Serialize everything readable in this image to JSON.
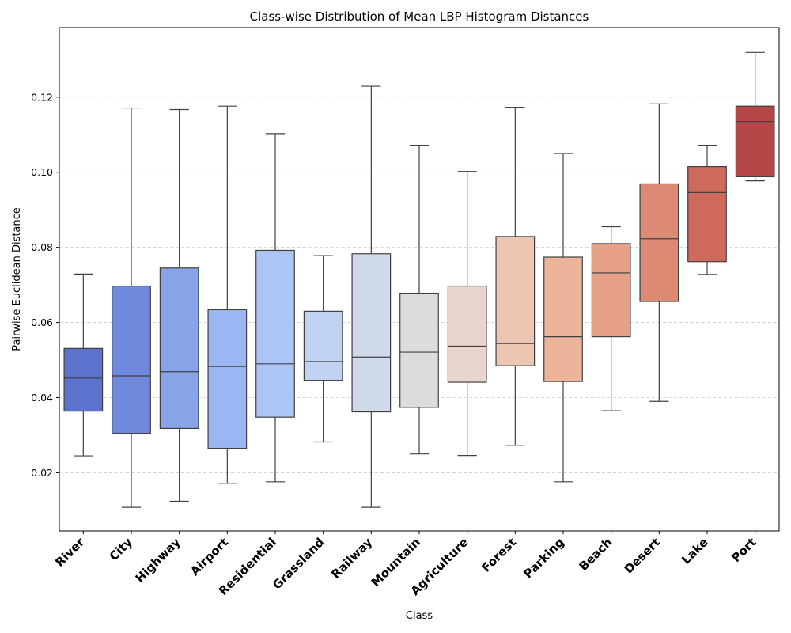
{
  "chart_data": {
    "type": "box",
    "title": "Class-wise Distribution of Mean LBP Histogram Distances",
    "xlabel": "Class",
    "ylabel": "Pairwise Euclidean Distance",
    "ylim": [
      0.0045,
      0.1385
    ],
    "yticks": [
      "0.02",
      "0.04",
      "0.06",
      "0.08",
      "0.10",
      "0.12"
    ],
    "ytick_values": [
      0.02,
      0.04,
      0.06,
      0.08,
      0.1,
      0.12
    ],
    "grid": "y-dashed",
    "palette": "coolwarm",
    "categories": [
      "River",
      "City",
      "Highway",
      "Airport",
      "Residential",
      "Grassland",
      "Railway",
      "Mountain",
      "Agriculture",
      "Forest",
      "Parking",
      "Beach",
      "Desert",
      "Lake",
      "Port"
    ],
    "boxes": [
      {
        "whisker_low": 0.0245,
        "q1": 0.0364,
        "median": 0.0452,
        "q3": 0.0531,
        "whisker_high": 0.0729,
        "color": "#5d72cd"
      },
      {
        "whisker_low": 0.0108,
        "q1": 0.0305,
        "median": 0.0458,
        "q3": 0.0697,
        "whisker_high": 0.1171,
        "color": "#7189dd"
      },
      {
        "whisker_low": 0.0124,
        "q1": 0.0318,
        "median": 0.0469,
        "q3": 0.0745,
        "whisker_high": 0.1167,
        "color": "#88a4e9"
      },
      {
        "whisker_low": 0.0172,
        "q1": 0.0265,
        "median": 0.0483,
        "q3": 0.0634,
        "whisker_high": 0.1176,
        "color": "#9bb6f2"
      },
      {
        "whisker_low": 0.0176,
        "q1": 0.0348,
        "median": 0.049,
        "q3": 0.0792,
        "whisker_high": 0.1103,
        "color": "#adc4f6"
      },
      {
        "whisker_low": 0.0282,
        "q1": 0.0446,
        "median": 0.0496,
        "q3": 0.063,
        "whisker_high": 0.0778,
        "color": "#c0d1f2"
      },
      {
        "whisker_low": 0.0108,
        "q1": 0.0362,
        "median": 0.0508,
        "q3": 0.0783,
        "whisker_high": 0.1229,
        "color": "#cfd9ea"
      },
      {
        "whisker_low": 0.025,
        "q1": 0.0374,
        "median": 0.0521,
        "q3": 0.0678,
        "whisker_high": 0.1072,
        "color": "#dcdcdc"
      },
      {
        "whisker_low": 0.0246,
        "q1": 0.0441,
        "median": 0.0537,
        "q3": 0.0697,
        "whisker_high": 0.1002,
        "color": "#e8d6cc"
      },
      {
        "whisker_low": 0.0273,
        "q1": 0.0485,
        "median": 0.0544,
        "q3": 0.0829,
        "whisker_high": 0.1173,
        "color": "#edc5b3"
      },
      {
        "whisker_low": 0.0176,
        "q1": 0.0443,
        "median": 0.0562,
        "q3": 0.0774,
        "whisker_high": 0.105,
        "color": "#edb49c"
      },
      {
        "whisker_low": 0.0365,
        "q1": 0.0562,
        "median": 0.0732,
        "q3": 0.081,
        "whisker_high": 0.0855,
        "color": "#e6a087"
      },
      {
        "whisker_low": 0.039,
        "q1": 0.0656,
        "median": 0.0823,
        "q3": 0.0969,
        "whisker_high": 0.1182,
        "color": "#dc8a73"
      },
      {
        "whisker_low": 0.0728,
        "q1": 0.0762,
        "median": 0.0946,
        "q3": 0.1015,
        "whisker_high": 0.1072,
        "color": "#cd6a5c"
      },
      {
        "whisker_low": 0.0977,
        "q1": 0.0988,
        "median": 0.1135,
        "q3": 0.1176,
        "whisker_high": 0.1319,
        "color": "#b64749"
      }
    ]
  }
}
